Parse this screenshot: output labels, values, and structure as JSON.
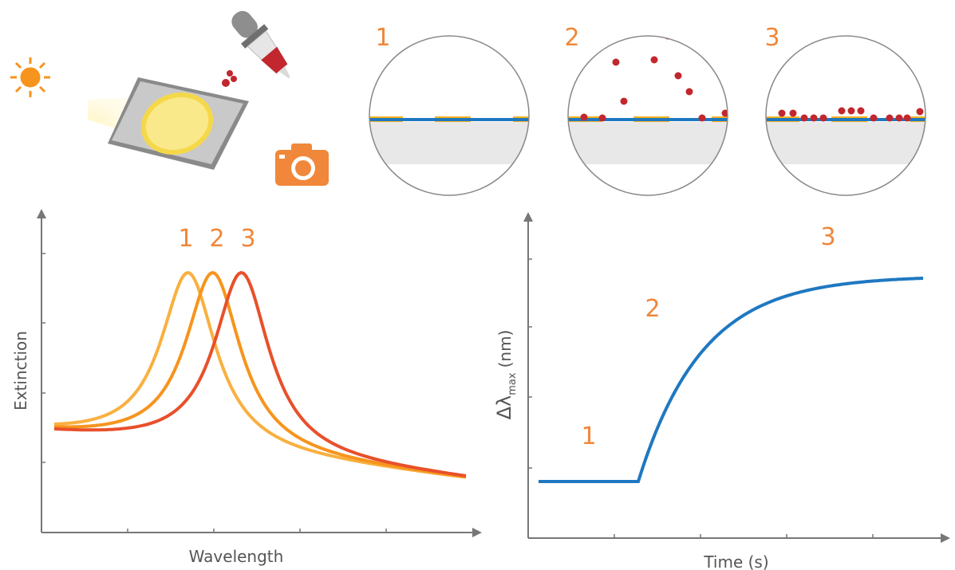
{
  "steps": {
    "labels": [
      "1",
      "2",
      "3"
    ]
  },
  "spectrum_plot": {
    "y_label": "Extinction",
    "x_label": "Wavelength",
    "curve_labels": [
      "1",
      "2",
      "3"
    ]
  },
  "kinetics_plot": {
    "y_label": {
      "symbol": "Δλ",
      "subscript": "max",
      "unit": "(nm)"
    },
    "x_label": "Time (s)",
    "phase_labels": [
      "1",
      "2",
      "3"
    ]
  }
}
